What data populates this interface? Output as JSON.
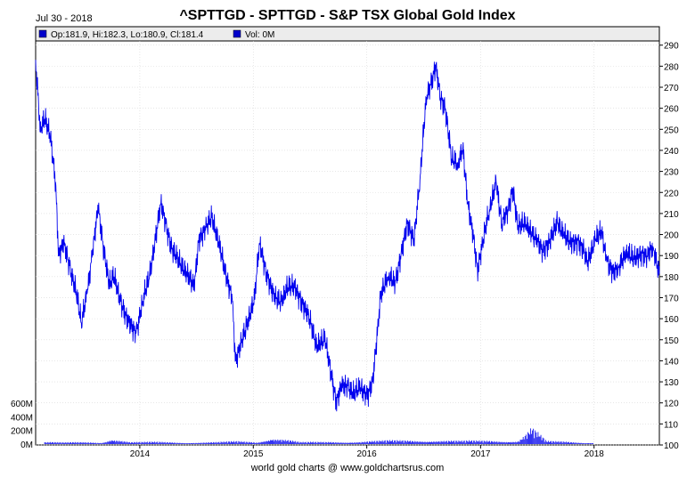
{
  "header": {
    "date": "Jul 30 - 2018",
    "title": "^SPTTGD - SPTTGD - S&P TSX Global Gold Index"
  },
  "legend": {
    "ohlc": "Op:181.9, Hi:182.3, Lo:180.9, Cl:181.4",
    "volume": "Vol: 0M",
    "color": "#0000cc"
  },
  "footer": "world gold charts @ www.goldchartsrus.com",
  "chart_data": {
    "type": "line",
    "title": "^SPTTGD - SPTTGD - S&P TSX Global Gold Index",
    "x_ticks": [
      "2014",
      "2015",
      "2016",
      "2017",
      "2018"
    ],
    "y_ticks": [
      "100",
      "110",
      "120",
      "130",
      "140",
      "150",
      "160",
      "170",
      "180",
      "190",
      "200",
      "210",
      "220",
      "230",
      "240",
      "250",
      "260",
      "270",
      "280",
      "290"
    ],
    "volume_ticks": [
      "0M",
      "200M",
      "400M",
      "600M"
    ],
    "ylim": [
      100,
      292
    ],
    "grid": true,
    "series": [
      {
        "color": "#0000ee",
        "points": [
          [
            "2013-01-31",
            283
          ],
          [
            "2013-02-15",
            250
          ],
          [
            "2013-03-01",
            255
          ],
          [
            "2013-03-20",
            246
          ],
          [
            "2013-04-05",
            225
          ],
          [
            "2013-04-15",
            190
          ],
          [
            "2013-05-01",
            196
          ],
          [
            "2013-05-20",
            185
          ],
          [
            "2013-06-10",
            173
          ],
          [
            "2013-06-27",
            158
          ],
          [
            "2013-07-15",
            172
          ],
          [
            "2013-08-01",
            190
          ],
          [
            "2013-08-20",
            213
          ],
          [
            "2013-09-05",
            195
          ],
          [
            "2013-09-25",
            176
          ],
          [
            "2013-10-10",
            180
          ],
          [
            "2013-11-01",
            168
          ],
          [
            "2013-11-20",
            160
          ],
          [
            "2013-12-20",
            153
          ],
          [
            "2014-01-10",
            168
          ],
          [
            "2014-02-01",
            180
          ],
          [
            "2014-03-10",
            215
          ],
          [
            "2014-03-25",
            205
          ],
          [
            "2014-04-15",
            193
          ],
          [
            "2014-05-10",
            186
          ],
          [
            "2014-06-05",
            181
          ],
          [
            "2014-06-25",
            175
          ],
          [
            "2014-07-10",
            198
          ],
          [
            "2014-08-01",
            203
          ],
          [
            "2014-08-20",
            208
          ],
          [
            "2014-09-15",
            195
          ],
          [
            "2014-10-05",
            180
          ],
          [
            "2014-10-25",
            170
          ],
          [
            "2014-11-05",
            140
          ],
          [
            "2014-11-20",
            147
          ],
          [
            "2014-12-10",
            156
          ],
          [
            "2015-01-05",
            170
          ],
          [
            "2015-01-21",
            196
          ],
          [
            "2015-02-10",
            183
          ],
          [
            "2015-03-10",
            170
          ],
          [
            "2015-04-01",
            168
          ],
          [
            "2015-04-20",
            175
          ],
          [
            "2015-05-15",
            175
          ],
          [
            "2015-06-15",
            165
          ],
          [
            "2015-07-01",
            160
          ],
          [
            "2015-07-24",
            147
          ],
          [
            "2015-08-20",
            150
          ],
          [
            "2015-09-10",
            133
          ],
          [
            "2015-09-25",
            120
          ],
          [
            "2015-10-12",
            128
          ],
          [
            "2015-11-01",
            128
          ],
          [
            "2015-11-20",
            124
          ],
          [
            "2015-12-10",
            127
          ],
          [
            "2016-01-05",
            124
          ],
          [
            "2016-01-20",
            130
          ],
          [
            "2016-02-05",
            155
          ],
          [
            "2016-02-15",
            172
          ],
          [
            "2016-03-10",
            180
          ],
          [
            "2016-04-01",
            177
          ],
          [
            "2016-04-20",
            190
          ],
          [
            "2016-05-10",
            205
          ],
          [
            "2016-06-01",
            198
          ],
          [
            "2016-06-20",
            226
          ],
          [
            "2016-07-10",
            265
          ],
          [
            "2016-08-01",
            275
          ],
          [
            "2016-08-10",
            280
          ],
          [
            "2016-08-25",
            265
          ],
          [
            "2016-09-10",
            260
          ],
          [
            "2016-09-30",
            236
          ],
          [
            "2016-10-20",
            233
          ],
          [
            "2016-11-05",
            242
          ],
          [
            "2016-11-20",
            215
          ],
          [
            "2016-12-10",
            198
          ],
          [
            "2016-12-22",
            183
          ],
          [
            "2017-01-10",
            198
          ],
          [
            "2017-01-30",
            212
          ],
          [
            "2017-02-20",
            225
          ],
          [
            "2017-03-10",
            205
          ],
          [
            "2017-03-30",
            212
          ],
          [
            "2017-04-15",
            222
          ],
          [
            "2017-05-01",
            203
          ],
          [
            "2017-05-25",
            206
          ],
          [
            "2017-06-15",
            200
          ],
          [
            "2017-07-01",
            197
          ],
          [
            "2017-07-20",
            193
          ],
          [
            "2017-08-10",
            196
          ],
          [
            "2017-09-05",
            206
          ],
          [
            "2017-09-25",
            200
          ],
          [
            "2017-10-15",
            196
          ],
          [
            "2017-11-10",
            197
          ],
          [
            "2017-11-30",
            192
          ],
          [
            "2017-12-10",
            186
          ],
          [
            "2018-01-05",
            198
          ],
          [
            "2018-01-25",
            201
          ],
          [
            "2018-02-10",
            188
          ],
          [
            "2018-03-05",
            182
          ],
          [
            "2018-03-20",
            184
          ],
          [
            "2018-04-15",
            192
          ],
          [
            "2018-05-10",
            188
          ],
          [
            "2018-06-01",
            191
          ],
          [
            "2018-06-20",
            190
          ],
          [
            "2018-07-10",
            194
          ],
          [
            "2018-07-30",
            181.4
          ]
        ]
      }
    ],
    "volume": {
      "color": "#0000ee",
      "points": [
        [
          "2013-03-01",
          35
        ],
        [
          "2013-05-01",
          25
        ],
        [
          "2013-07-01",
          30
        ],
        [
          "2013-09-01",
          25
        ],
        [
          "2013-10-01",
          100
        ],
        [
          "2013-12-01",
          30
        ],
        [
          "2014-03-01",
          35
        ],
        [
          "2014-06-01",
          25
        ],
        [
          "2014-09-01",
          30
        ],
        [
          "2014-11-15",
          45
        ],
        [
          "2015-01-15",
          30
        ],
        [
          "2015-03-01",
          120
        ],
        [
          "2015-06-01",
          30
        ],
        [
          "2015-09-01",
          35
        ],
        [
          "2015-12-01",
          40
        ],
        [
          "2016-03-01",
          55
        ],
        [
          "2016-06-01",
          60
        ],
        [
          "2016-08-01",
          65
        ],
        [
          "2016-11-01",
          50
        ],
        [
          "2017-02-01",
          55
        ],
        [
          "2017-05-01",
          55
        ],
        [
          "2017-06-15",
          270
        ],
        [
          "2017-08-01",
          45
        ],
        [
          "2017-10-01",
          40
        ],
        [
          "2017-12-01",
          25
        ]
      ]
    }
  }
}
